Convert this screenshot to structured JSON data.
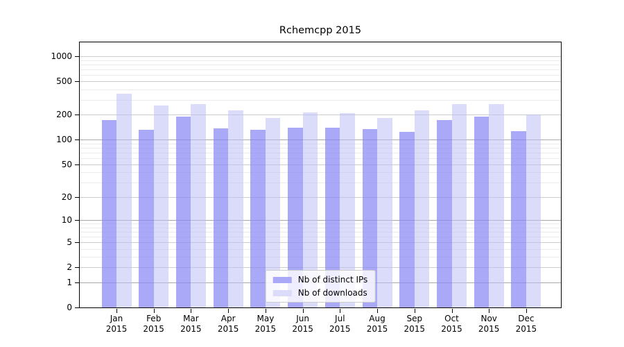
{
  "chart_data": {
    "type": "bar",
    "title": "Rchemcpp 2015",
    "categories": [
      "Jan",
      "Feb",
      "Mar",
      "Apr",
      "May",
      "Jun",
      "Jul",
      "Aug",
      "Sep",
      "Oct",
      "Nov",
      "Dec"
    ],
    "x_tick_second_line": "2015",
    "series": [
      {
        "name": "Nb of distinct IPs",
        "color": "#a9a9f7",
        "fill": "rgba(136,136,244,0.72)",
        "values": [
          172,
          131,
          188,
          136,
          131,
          140,
          138,
          134,
          124,
          173,
          190,
          126
        ]
      },
      {
        "name": "Nb of downloads",
        "color": "#dbdbfa",
        "fill": "rgba(190,190,246,0.55)",
        "values": [
          356,
          255,
          268,
          226,
          183,
          211,
          207,
          183,
          226,
          270,
          270,
          202
        ]
      }
    ],
    "y_axis": {
      "scale": "log10(1+v)",
      "max": 1465,
      "tick_values": [
        0,
        1,
        2,
        5,
        10,
        20,
        50,
        100,
        200,
        500,
        1000
      ],
      "tick_labels": [
        "0",
        "1",
        "2",
        "5",
        "10",
        "20",
        "50",
        "100",
        "200",
        "500",
        "1000"
      ]
    },
    "y_gridlines": {
      "decade": [
        1,
        10,
        100
      ],
      "labeled": [
        2,
        5,
        20,
        50,
        200,
        500,
        1000
      ],
      "minor": [
        3,
        4,
        6,
        7,
        8,
        9,
        30,
        40,
        60,
        70,
        80,
        90,
        300,
        400,
        600,
        700,
        800,
        900
      ]
    },
    "grid_colors": {
      "decade": "#a8a8a8",
      "labeled": "#cdcdcd",
      "minor": "#ebebeb"
    },
    "legend": {
      "position": "lower center",
      "items": [
        "Nb of distinct IPs",
        "Nb of downloads"
      ]
    },
    "xlabel": "",
    "ylabel": ""
  }
}
